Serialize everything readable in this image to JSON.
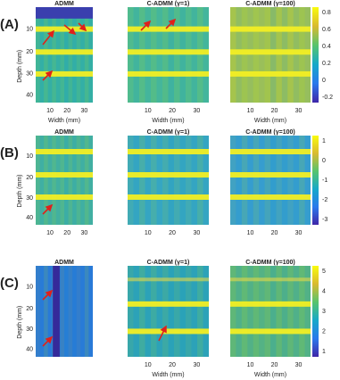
{
  "rows": [
    {
      "label": "(A)",
      "panels": [
        {
          "title": "ADMM"
        },
        {
          "title": "C-ADMM (γ=1)"
        },
        {
          "title": "C-ADMM (γ=100)"
        }
      ],
      "colorbar_ticks": [
        0.8,
        0.6,
        0.4,
        0.2,
        0,
        -0.2
      ]
    },
    {
      "label": "(B)",
      "panels": [
        {
          "title": "ADMM"
        },
        {
          "title": "C-ADMM (γ=1)"
        },
        {
          "title": "C-ADMM (γ=100)"
        }
      ],
      "colorbar_ticks": [
        1,
        0,
        -1,
        -2,
        -3
      ]
    },
    {
      "label": "(C)",
      "panels": [
        {
          "title": "ADMM"
        },
        {
          "title": "C-ADMM (γ=1)"
        },
        {
          "title": "C-ADMM (γ=100)"
        }
      ],
      "colorbar_ticks": [
        5,
        4,
        3,
        2,
        1
      ]
    }
  ],
  "y_axis": {
    "label": "Depth (mm)",
    "ticks": [
      10,
      20,
      30,
      40
    ]
  },
  "x_axis": {
    "label": "Width (mm)",
    "ticks": [
      10,
      20,
      30
    ]
  }
}
